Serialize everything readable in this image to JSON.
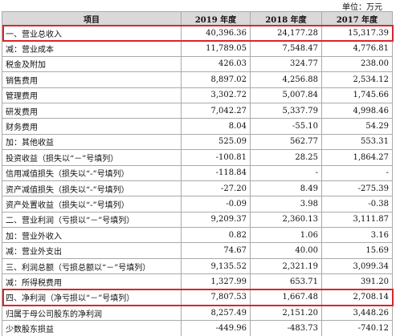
{
  "unit": "单位：万元",
  "table": {
    "header": [
      "项目",
      "2019 年度",
      "2018 年度",
      "2017 年度"
    ],
    "rows": [
      [
        "一、营业总收入",
        "40,396.36",
        "24,177.28",
        "15,317.39"
      ],
      [
        "减：营业成本",
        "11,789.05",
        "7,548.47",
        "4,776.81"
      ],
      [
        "税金及附加",
        "426.03",
        "324.77",
        "238.00"
      ],
      [
        "销售费用",
        "8,897.02",
        "4,256.88",
        "2,534.12"
      ],
      [
        "管理费用",
        "3,302.72",
        "5,007.84",
        "1,745.66"
      ],
      [
        "研发费用",
        "7,042.27",
        "5,337.79",
        "4,998.46"
      ],
      [
        "财务费用",
        "8.04",
        "-55.10",
        "54.29"
      ],
      [
        "加：其他收益",
        "525.09",
        "562.77",
        "553.31"
      ],
      [
        "投资收益（损失以“－”号填列）",
        "-100.81",
        "28.25",
        "1,864.27"
      ],
      [
        "信用减值损失（损失以“-”号填列）",
        "-118.84",
        "-",
        "-"
      ],
      [
        "资产减值损失（损失以“-”号填列）",
        "-27.20",
        "8.49",
        "-275.39"
      ],
      [
        "资产处置收益（损失以“-”号填列）",
        "-0.09",
        "3.98",
        "-0.38"
      ],
      [
        "二、营业利润（亏损以“－”号填列）",
        "9,209.37",
        "2,360.13",
        "3,111.87"
      ],
      [
        "加：营业外收入",
        "0.82",
        "1.06",
        "3.16"
      ],
      [
        "减：营业外支出",
        "74.67",
        "40.00",
        "15.69"
      ],
      [
        "三、利润总额（亏损总额以“－”号填列）",
        "9,135.52",
        "2,321.19",
        "3,099.34"
      ],
      [
        "减：所得税费用",
        "1,327.99",
        "653.71",
        "391.20"
      ],
      [
        "四、净利润（净亏损以“－”号填列）",
        "7,807.53",
        "1,667.48",
        "2,708.14"
      ],
      [
        "归属于母公司股东的净利润",
        "8,257.49",
        "2,151.20",
        "3,448.26"
      ],
      [
        "少数股东损益",
        "-449.96",
        "-483.73",
        "-740.12"
      ]
    ]
  }
}
